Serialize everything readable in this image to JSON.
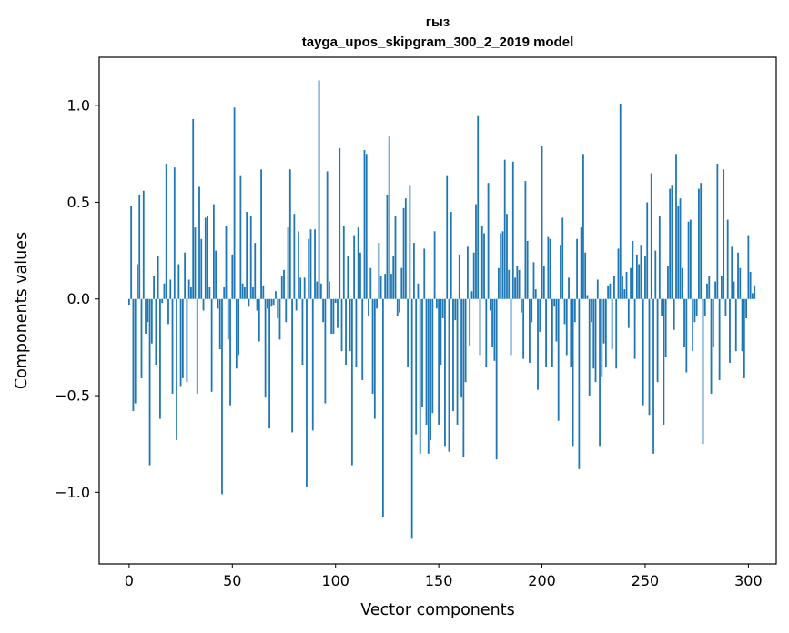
{
  "chart_data": {
    "type": "bar",
    "title": "гыз",
    "subtitle": "tayga_upos_skipgram_300_2_2019 model",
    "xlabel": "Vector components",
    "ylabel": "Components values",
    "xlim": [
      -14.5,
      313.5
    ],
    "ylim": [
      -1.37,
      1.25
    ],
    "xticks": [
      0,
      50,
      100,
      150,
      200,
      250,
      300
    ],
    "xtick_labels": [
      "0",
      "50",
      "100",
      "150",
      "200",
      "250",
      "300"
    ],
    "yticks": [
      -1.0,
      -0.5,
      0.0,
      0.5,
      1.0
    ],
    "ytick_labels": [
      "−1.0",
      "−0.5",
      "0.0",
      "0.5",
      "1.0"
    ],
    "grid": false,
    "color": "#1f77b4",
    "values": [
      -0.03,
      0.48,
      -0.58,
      -0.54,
      0.18,
      0.54,
      -0.41,
      0.56,
      -0.18,
      -0.12,
      -0.86,
      -0.23,
      0.12,
      -0.34,
      0.22,
      -0.62,
      -0.02,
      0.08,
      0.7,
      -0.13,
      0.1,
      -0.49,
      0.68,
      -0.73,
      0.18,
      -0.45,
      -0.41,
      0.24,
      -0.43,
      0.1,
      0.06,
      0.93,
      0.37,
      -0.49,
      0.58,
      0.31,
      -0.06,
      0.42,
      0.43,
      0.06,
      -0.48,
      0.49,
      0.25,
      -0.05,
      -0.26,
      -1.01,
      0.06,
      0.38,
      -0.21,
      -0.55,
      0.23,
      0.99,
      -0.36,
      -0.29,
      0.64,
      0.08,
      0.06,
      0.45,
      -0.04,
      0.43,
      0.06,
      0.29,
      -0.06,
      -0.22,
      0.67,
      0.07,
      -0.51,
      -0.05,
      -0.67,
      -0.04,
      -0.03,
      0.04,
      -0.1,
      -0.21,
      0.12,
      0.15,
      -0.12,
      0.37,
      0.67,
      -0.69,
      0.44,
      -0.06,
      0.35,
      0.11,
      -0.34,
      0.11,
      -0.97,
      0.31,
      0.36,
      -0.68,
      0.36,
      0.09,
      1.13,
      0.08,
      -0.12,
      -0.54,
      0.66,
      0.09,
      -0.18,
      -0.18,
      -0.02,
      -0.15,
      0.78,
      -0.27,
      0.38,
      -0.34,
      0.22,
      -0.27,
      -0.86,
      0.33,
      -0.35,
      0.37,
      0.24,
      -0.42,
      0.77,
      0.75,
      -0.09,
      0.16,
      -0.49,
      -0.62,
      -0.05,
      0.29,
      0.12,
      -1.13,
      0.13,
      0.54,
      0.84,
      0.13,
      0.22,
      0.43,
      -0.09,
      -0.07,
      0.16,
      0.47,
      0.52,
      -0.35,
      0.59,
      -1.24,
      0.29,
      -0.7,
      0.08,
      -0.8,
      -0.56,
      0.26,
      -0.65,
      -0.8,
      -0.73,
      -0.59,
      0.35,
      -0.05,
      -0.65,
      -0.34,
      -0.1,
      -0.76,
      0.64,
      -0.79,
      0.45,
      -0.58,
      -0.11,
      -0.65,
      0.23,
      -0.51,
      -0.82,
      -0.43,
      0.27,
      -0.24,
      0.04,
      0.24,
      0.49,
      0.95,
      -0.29,
      0.38,
      0.34,
      -0.35,
      0.6,
      -0.06,
      -0.25,
      -0.32,
      -0.83,
      0.16,
      0.34,
      0.35,
      0.72,
      0.44,
      0.15,
      -0.29,
      0.71,
      0.11,
      0.17,
      0.15,
      -0.07,
      -0.31,
      0.61,
      0.3,
      -0.33,
      -0.12,
      0.19,
      0.05,
      -0.47,
      -0.17,
      0.79,
      0.17,
      -0.35,
      0.32,
      0.31,
      -0.35,
      -0.04,
      -0.22,
      -0.63,
      0.28,
      0.42,
      -0.13,
      -0.29,
      0.11,
      -0.35,
      -0.76,
      -0.12,
      0.31,
      -0.88,
      0.37,
      0.75,
      0.24,
      0.02,
      -0.5,
      -0.12,
      -0.36,
      -0.43,
      0.1,
      -0.76,
      -0.4,
      -0.23,
      -0.35,
      0.07,
      0.08,
      -0.26,
      0.12,
      -0.36,
      0.26,
      1.01,
      0.12,
      0.05,
      0.14,
      -0.15,
      0.16,
      0.3,
      -0.31,
      0.23,
      0.18,
      0.28,
      -0.55,
      0.22,
      0.5,
      -0.6,
      0.65,
      -0.8,
      0.25,
      -0.43,
      0.43,
      -0.09,
      -0.65,
      -0.3,
      0.17,
      0.57,
      0.59,
      -0.16,
      0.75,
      0.48,
      0.52,
      0.16,
      -0.25,
      -0.38,
      0.4,
      0.41,
      -0.27,
      -0.12,
      -0.09,
      0.57,
      0.6,
      -0.75,
      -0.09,
      0.08,
      0.12,
      -0.49,
      -0.25,
      0.09,
      0.7,
      -0.42,
      0.12,
      0.67,
      -0.09,
      0.41,
      -0.33,
      0.27,
      0.09,
      -0.27,
      0.24,
      0.16,
      -0.27,
      -0.41,
      -0.1,
      0.33,
      0.14,
      0.03,
      0.07
    ]
  }
}
